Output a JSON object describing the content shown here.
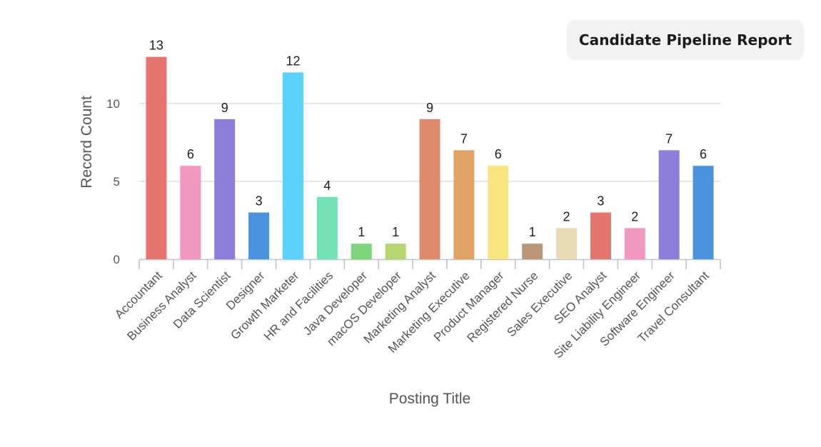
{
  "report": {
    "title": "Candidate Pipeline Report"
  },
  "chart_data": {
    "type": "bar",
    "xlabel": "Posting Title",
    "ylabel": "Record Count",
    "ylim": [
      0,
      13
    ],
    "yticks": [
      0,
      5,
      10
    ],
    "grid": true,
    "categories": [
      "Accountant",
      "Business Analyst",
      "Data Scientist",
      "Designer",
      "Growth Marketer",
      "HR and Facilities",
      "Java Developer",
      "macOS Developer",
      "Marketing Analyst",
      "Marketing Executive",
      "Product Manager",
      "Registered Nurse",
      "Sales Executive",
      "SEO Analyst",
      "Site Liability Engineer",
      "Software Engineer",
      "Travel Consultant"
    ],
    "values": [
      13,
      6,
      9,
      3,
      12,
      4,
      1,
      1,
      9,
      7,
      6,
      1,
      2,
      3,
      2,
      7,
      6
    ],
    "colors": [
      "#e5766f",
      "#f198c1",
      "#8b7fda",
      "#4c93dd",
      "#5bd0fb",
      "#75e1b4",
      "#7ed37c",
      "#b6d66f",
      "#e08a6c",
      "#e0a265",
      "#f7e67e",
      "#bb9778",
      "#eadcb5",
      "#e5766f",
      "#f198c1",
      "#8b7fda",
      "#4c93dd"
    ]
  }
}
